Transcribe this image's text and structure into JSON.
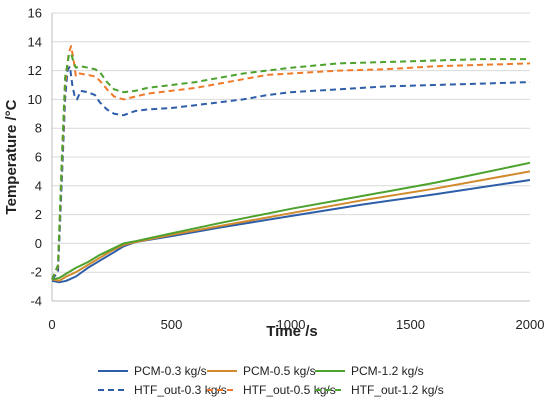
{
  "chart_data": {
    "type": "line",
    "xlabel": "Time /s",
    "ylabel": "Temperature /°C",
    "xlim": [
      0,
      2000
    ],
    "ylim": [
      -4,
      16
    ],
    "xticks": [
      0,
      500,
      1000,
      1500,
      2000
    ],
    "yticks": [
      -4,
      -2,
      0,
      2,
      4,
      6,
      8,
      10,
      12,
      14,
      16
    ],
    "grid": "horizontal",
    "legend_position": "bottom",
    "series": [
      {
        "name": "PCM-0.3 kg/s",
        "color": "#2e5ea8",
        "style": "solid",
        "points": [
          [
            0,
            -2.6
          ],
          [
            30,
            -2.7
          ],
          [
            60,
            -2.6
          ],
          [
            100,
            -2.3
          ],
          [
            150,
            -1.7
          ],
          [
            200,
            -1.2
          ],
          [
            250,
            -0.7
          ],
          [
            300,
            -0.2
          ],
          [
            350,
            0.1
          ],
          [
            500,
            0.5
          ],
          [
            700,
            1.1
          ],
          [
            1000,
            1.9
          ],
          [
            1300,
            2.7
          ],
          [
            1600,
            3.4
          ],
          [
            2000,
            4.4
          ]
        ]
      },
      {
        "name": "PCM-0.5 kg/s",
        "color": "#d18a2c",
        "style": "solid",
        "points": [
          [
            0,
            -2.5
          ],
          [
            30,
            -2.6
          ],
          [
            60,
            -2.3
          ],
          [
            100,
            -2.0
          ],
          [
            150,
            -1.5
          ],
          [
            200,
            -1.0
          ],
          [
            250,
            -0.5
          ],
          [
            300,
            -0.1
          ],
          [
            350,
            0.1
          ],
          [
            500,
            0.6
          ],
          [
            700,
            1.2
          ],
          [
            1000,
            2.1
          ],
          [
            1300,
            3.0
          ],
          [
            1600,
            3.8
          ],
          [
            2000,
            5.0
          ]
        ]
      },
      {
        "name": "PCM-1.2 kg/s",
        "color": "#4ca22d",
        "style": "solid",
        "points": [
          [
            0,
            -2.5
          ],
          [
            30,
            -2.4
          ],
          [
            60,
            -2.1
          ],
          [
            100,
            -1.7
          ],
          [
            150,
            -1.3
          ],
          [
            200,
            -0.8
          ],
          [
            250,
            -0.4
          ],
          [
            300,
            0.0
          ],
          [
            350,
            0.15
          ],
          [
            500,
            0.7
          ],
          [
            700,
            1.4
          ],
          [
            1000,
            2.4
          ],
          [
            1300,
            3.3
          ],
          [
            1600,
            4.2
          ],
          [
            2000,
            5.6
          ]
        ]
      },
      {
        "name": "HTF_out-0.3 kg/s",
        "color": "#2e5ea8",
        "style": "dashed",
        "points": [
          [
            0,
            -2.5
          ],
          [
            25,
            -2.0
          ],
          [
            40,
            4.0
          ],
          [
            55,
            10.0
          ],
          [
            65,
            12.0
          ],
          [
            75,
            12.3
          ],
          [
            85,
            11.0
          ],
          [
            95,
            10.2
          ],
          [
            105,
            10.0
          ],
          [
            120,
            10.6
          ],
          [
            150,
            10.5
          ],
          [
            180,
            10.3
          ],
          [
            200,
            9.8
          ],
          [
            230,
            9.3
          ],
          [
            260,
            9.0
          ],
          [
            300,
            8.9
          ],
          [
            350,
            9.2
          ],
          [
            400,
            9.3
          ],
          [
            500,
            9.4
          ],
          [
            600,
            9.6
          ],
          [
            700,
            9.8
          ],
          [
            800,
            10.0
          ],
          [
            900,
            10.3
          ],
          [
            1000,
            10.5
          ],
          [
            1200,
            10.7
          ],
          [
            1400,
            10.9
          ],
          [
            1600,
            11.0
          ],
          [
            1800,
            11.1
          ],
          [
            2000,
            11.2
          ]
        ]
      },
      {
        "name": "HTF_out-0.5 kg/s",
        "color": "#ef7b2a",
        "style": "dashed",
        "points": [
          [
            0,
            -2.5
          ],
          [
            25,
            -1.6
          ],
          [
            40,
            5.0
          ],
          [
            55,
            11.0
          ],
          [
            70,
            13.2
          ],
          [
            80,
            13.7
          ],
          [
            90,
            12.8
          ],
          [
            100,
            11.6
          ],
          [
            115,
            11.8
          ],
          [
            150,
            11.7
          ],
          [
            180,
            11.6
          ],
          [
            200,
            11.3
          ],
          [
            230,
            10.7
          ],
          [
            260,
            10.2
          ],
          [
            300,
            10.0
          ],
          [
            350,
            10.2
          ],
          [
            400,
            10.4
          ],
          [
            500,
            10.6
          ],
          [
            600,
            10.8
          ],
          [
            700,
            11.1
          ],
          [
            800,
            11.4
          ],
          [
            900,
            11.7
          ],
          [
            1000,
            11.8
          ],
          [
            1200,
            12.0
          ],
          [
            1400,
            12.1
          ],
          [
            1600,
            12.3
          ],
          [
            1800,
            12.4
          ],
          [
            2000,
            12.5
          ]
        ]
      },
      {
        "name": "HTF_out-1.2 kg/s",
        "color": "#4ca22d",
        "style": "dashed",
        "points": [
          [
            0,
            -2.5
          ],
          [
            25,
            -1.5
          ],
          [
            40,
            5.5
          ],
          [
            55,
            11.5
          ],
          [
            70,
            13.0
          ],
          [
            80,
            13.2
          ],
          [
            90,
            12.6
          ],
          [
            100,
            12.2
          ],
          [
            120,
            12.3
          ],
          [
            150,
            12.2
          ],
          [
            180,
            12.1
          ],
          [
            200,
            11.9
          ],
          [
            230,
            11.2
          ],
          [
            260,
            10.7
          ],
          [
            300,
            10.5
          ],
          [
            350,
            10.6
          ],
          [
            400,
            10.8
          ],
          [
            500,
            11.0
          ],
          [
            600,
            11.2
          ],
          [
            700,
            11.5
          ],
          [
            800,
            11.8
          ],
          [
            900,
            12.0
          ],
          [
            1000,
            12.2
          ],
          [
            1200,
            12.5
          ],
          [
            1400,
            12.6
          ],
          [
            1600,
            12.7
          ],
          [
            1800,
            12.8
          ],
          [
            2000,
            12.8
          ]
        ]
      }
    ]
  }
}
